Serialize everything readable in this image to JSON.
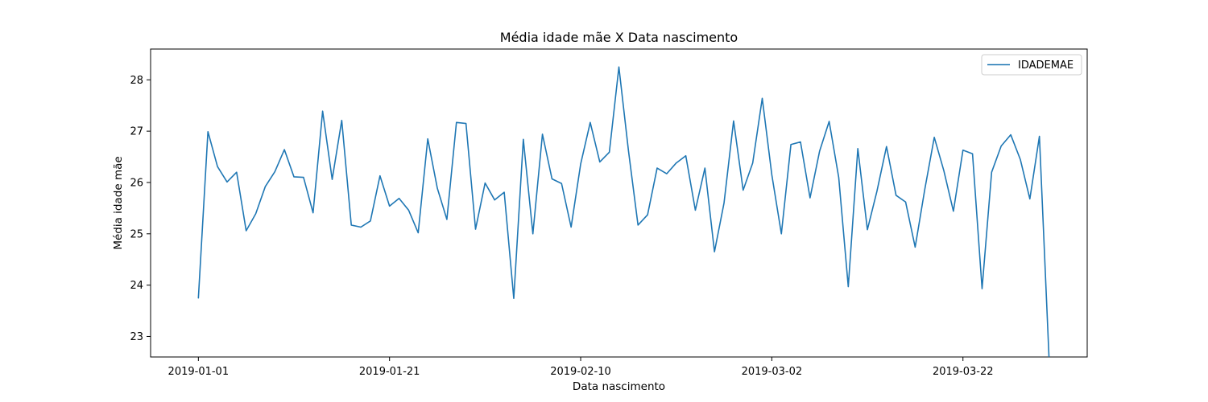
{
  "chart_data": {
    "type": "line",
    "title": "Média idade mãe X Data nascimento",
    "xlabel": "Data nascimento",
    "ylabel": "Média idade mãe",
    "x_ticks": [
      "2019-01-01",
      "2019-01-21",
      "2019-02-10",
      "2019-03-02",
      "2019-03-22"
    ],
    "y_ticks": [
      23,
      24,
      25,
      26,
      27,
      28
    ],
    "ylim": [
      22.6,
      28.6
    ],
    "xlim": [
      "2018-12-27",
      "2019-04-04"
    ],
    "legend": "top-right",
    "grid": false,
    "line_color": "#1f77b4",
    "series": [
      {
        "name": "IDADEMAE",
        "x": [
          "2019-01-01",
          "2019-01-02",
          "2019-01-03",
          "2019-01-04",
          "2019-01-05",
          "2019-01-06",
          "2019-01-07",
          "2019-01-08",
          "2019-01-09",
          "2019-01-10",
          "2019-01-11",
          "2019-01-12",
          "2019-01-13",
          "2019-01-14",
          "2019-01-15",
          "2019-01-16",
          "2019-01-17",
          "2019-01-18",
          "2019-01-19",
          "2019-01-20",
          "2019-01-21",
          "2019-01-22",
          "2019-01-23",
          "2019-01-24",
          "2019-01-25",
          "2019-01-26",
          "2019-01-27",
          "2019-01-28",
          "2019-01-29",
          "2019-01-30",
          "2019-01-31",
          "2019-02-01",
          "2019-02-02",
          "2019-02-03",
          "2019-02-04",
          "2019-02-05",
          "2019-02-06",
          "2019-02-07",
          "2019-02-08",
          "2019-02-09",
          "2019-02-10",
          "2019-02-11",
          "2019-02-12",
          "2019-02-13",
          "2019-02-14",
          "2019-02-15",
          "2019-02-16",
          "2019-02-17",
          "2019-02-18",
          "2019-02-19",
          "2019-02-20",
          "2019-02-21",
          "2019-02-22",
          "2019-02-23",
          "2019-02-24",
          "2019-02-25",
          "2019-02-26",
          "2019-02-27",
          "2019-02-28",
          "2019-03-01",
          "2019-03-02",
          "2019-03-03",
          "2019-03-04",
          "2019-03-05",
          "2019-03-06",
          "2019-03-07",
          "2019-03-08",
          "2019-03-09",
          "2019-03-10",
          "2019-03-11",
          "2019-03-12",
          "2019-03-13",
          "2019-03-14",
          "2019-03-15",
          "2019-03-16",
          "2019-03-17",
          "2019-03-18",
          "2019-03-19",
          "2019-03-20",
          "2019-03-21",
          "2019-03-22",
          "2019-03-23",
          "2019-03-24",
          "2019-03-25",
          "2019-03-26",
          "2019-03-27",
          "2019-03-28",
          "2019-03-29",
          "2019-03-30",
          "2019-03-31"
        ],
        "values": [
          23.75,
          26.99,
          26.31,
          26.01,
          26.2,
          25.06,
          25.39,
          25.92,
          26.21,
          26.64,
          26.11,
          26.1,
          25.41,
          27.39,
          26.06,
          27.21,
          25.17,
          25.13,
          25.25,
          26.13,
          25.54,
          25.69,
          25.46,
          25.02,
          26.85,
          25.89,
          25.28,
          27.17,
          27.15,
          25.09,
          25.99,
          25.66,
          25.81,
          23.74,
          26.84,
          25.0,
          26.94,
          26.07,
          25.98,
          25.13,
          26.36,
          27.17,
          26.4,
          26.59,
          28.25,
          26.62,
          25.17,
          25.37,
          26.28,
          26.17,
          26.38,
          26.52,
          25.46,
          26.28,
          24.65,
          25.6,
          27.2,
          25.85,
          26.38,
          27.64,
          26.15,
          25.0,
          26.74,
          26.79,
          25.7,
          26.61,
          27.19,
          26.1,
          23.97,
          26.66,
          25.08,
          25.83,
          26.7,
          25.75,
          25.62,
          24.74,
          25.86,
          26.88,
          26.23,
          25.44,
          26.63,
          26.56,
          23.93,
          26.2,
          26.71,
          26.93,
          26.45,
          25.68,
          26.9,
          22.61
        ]
      }
    ]
  }
}
